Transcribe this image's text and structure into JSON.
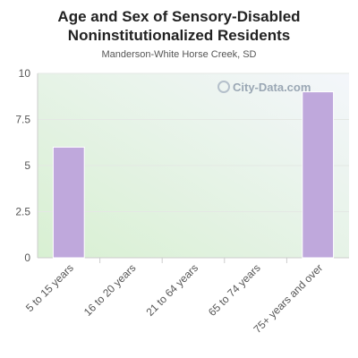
{
  "title_lines": [
    "Age and Sex of Sensory-Disabled",
    "Noninstitutionalized Residents"
  ],
  "subtitle": "Manderson-White Horse Creek, SD",
  "watermark": "City-Data.com",
  "colors": {
    "bar": "#bfa8dc",
    "bar_stroke": "#ffffff",
    "plot_bg_top": "#f4f6fb",
    "plot_bg_bottom": "#d8f0d2",
    "grid": "#e4e8e4",
    "axis": "#cccccc"
  },
  "chart_data": {
    "type": "bar",
    "title": "Age and Sex of Sensory-Disabled Noninstitutionalized Residents",
    "subtitle": "Manderson-White Horse Creek, SD",
    "categories": [
      "5 to 15 years",
      "16 to 20 years",
      "21 to 64 years",
      "65 to 74 years",
      "75+ years and over"
    ],
    "values": [
      6,
      0,
      0,
      0,
      9
    ],
    "ylim": [
      0,
      10
    ],
    "yticks": [
      0,
      2.5,
      5,
      7.5,
      10
    ],
    "ytick_labels": [
      "0",
      "2.5",
      "5",
      "7.5",
      "10"
    ],
    "grid": true,
    "legend": false
  }
}
